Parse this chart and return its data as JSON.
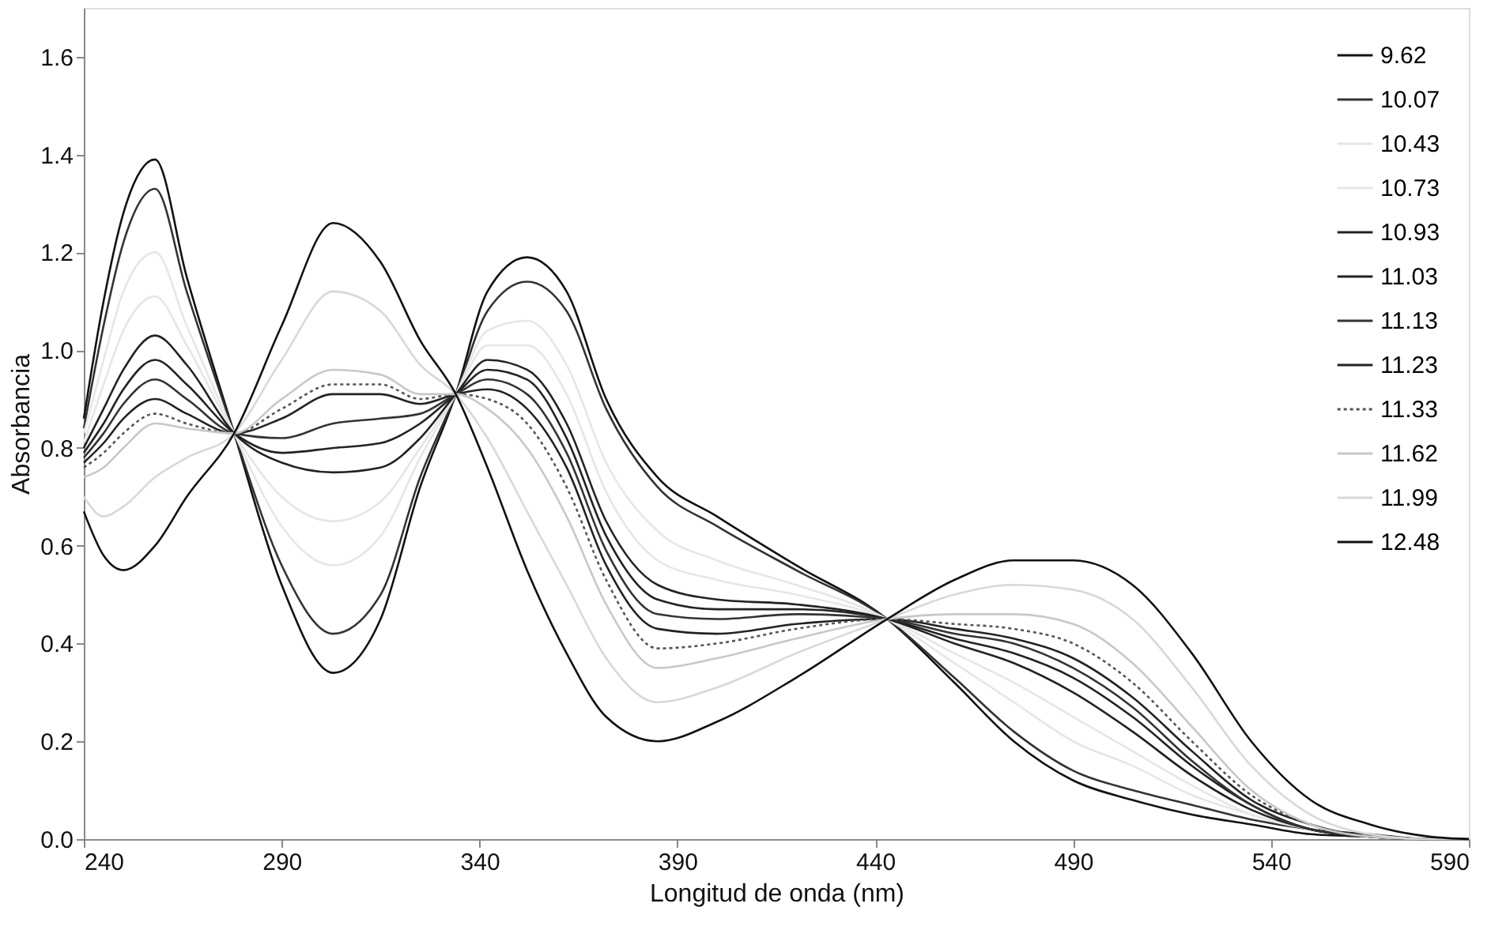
{
  "chart_data": {
    "type": "line",
    "xlabel": "Longitud de onda (nm)",
    "ylabel": "Absorbancia",
    "x": [
      240,
      245,
      250,
      258,
      266,
      278,
      290,
      303,
      315,
      325,
      334,
      342,
      352,
      362,
      372,
      385,
      400,
      420,
      443,
      460,
      475,
      490,
      505,
      520,
      535,
      550,
      565,
      580,
      590
    ],
    "series": [
      {
        "name": "9.62",
        "color": "#111111",
        "values": [
          0.86,
          1.1,
          1.28,
          1.39,
          1.15,
          0.83,
          0.52,
          0.34,
          0.45,
          0.72,
          0.91,
          1.12,
          1.19,
          1.12,
          0.9,
          0.74,
          0.66,
          0.56,
          0.45,
          0.32,
          0.2,
          0.12,
          0.08,
          0.05,
          0.03,
          0.01,
          0.005,
          0,
          0
        ]
      },
      {
        "name": "10.07",
        "color": "#333333",
        "values": [
          0.84,
          1.05,
          1.22,
          1.33,
          1.12,
          0.83,
          0.56,
          0.42,
          0.5,
          0.74,
          0.91,
          1.08,
          1.14,
          1.08,
          0.88,
          0.72,
          0.64,
          0.55,
          0.45,
          0.33,
          0.22,
          0.14,
          0.1,
          0.07,
          0.04,
          0.02,
          0.01,
          0,
          0
        ]
      },
      {
        "name": "10.43",
        "color": "#e6e6e6",
        "values": [
          0.83,
          0.98,
          1.12,
          1.2,
          1.05,
          0.83,
          0.64,
          0.56,
          0.62,
          0.78,
          0.91,
          1.04,
          1.06,
          0.97,
          0.77,
          0.63,
          0.57,
          0.52,
          0.45,
          0.36,
          0.28,
          0.2,
          0.15,
          0.09,
          0.05,
          0.02,
          0.005,
          0,
          0
        ]
      },
      {
        "name": "10.73",
        "color": "#e6e6e6",
        "values": [
          0.81,
          0.93,
          1.04,
          1.11,
          1.01,
          0.83,
          0.7,
          0.65,
          0.69,
          0.8,
          0.91,
          1.01,
          1.01,
          0.91,
          0.71,
          0.57,
          0.53,
          0.5,
          0.45,
          0.38,
          0.32,
          0.25,
          0.18,
          0.11,
          0.05,
          0.02,
          0.005,
          0,
          0
        ]
      },
      {
        "name": "10.93",
        "color": "#222222",
        "values": [
          0.8,
          0.88,
          0.96,
          1.03,
          0.97,
          0.83,
          0.77,
          0.75,
          0.76,
          0.82,
          0.91,
          0.98,
          0.96,
          0.85,
          0.65,
          0.52,
          0.49,
          0.48,
          0.45,
          0.4,
          0.36,
          0.3,
          0.22,
          0.13,
          0.06,
          0.02,
          0.005,
          0,
          0
        ]
      },
      {
        "name": "11.03",
        "color": "#222222",
        "values": [
          0.79,
          0.85,
          0.92,
          0.98,
          0.93,
          0.83,
          0.79,
          0.8,
          0.81,
          0.85,
          0.91,
          0.96,
          0.94,
          0.82,
          0.62,
          0.49,
          0.47,
          0.47,
          0.45,
          0.41,
          0.38,
          0.33,
          0.25,
          0.15,
          0.07,
          0.02,
          0.005,
          0,
          0
        ]
      },
      {
        "name": "11.13",
        "color": "#333333",
        "values": [
          0.78,
          0.83,
          0.89,
          0.94,
          0.9,
          0.83,
          0.82,
          0.85,
          0.86,
          0.87,
          0.91,
          0.94,
          0.91,
          0.79,
          0.59,
          0.46,
          0.45,
          0.46,
          0.45,
          0.42,
          0.4,
          0.35,
          0.27,
          0.16,
          0.07,
          0.02,
          0.005,
          0,
          0
        ]
      },
      {
        "name": "11.23",
        "color": "#222222",
        "values": [
          0.77,
          0.81,
          0.86,
          0.9,
          0.87,
          0.83,
          0.86,
          0.91,
          0.91,
          0.89,
          0.91,
          0.92,
          0.88,
          0.76,
          0.56,
          0.43,
          0.42,
          0.44,
          0.45,
          0.43,
          0.41,
          0.37,
          0.29,
          0.18,
          0.08,
          0.03,
          0.005,
          0,
          0
        ]
      },
      {
        "name": "11.33",
        "color": "#555555",
        "line_style": "dotted",
        "values": [
          0.76,
          0.79,
          0.83,
          0.87,
          0.85,
          0.83,
          0.88,
          0.93,
          0.93,
          0.9,
          0.91,
          0.9,
          0.85,
          0.72,
          0.53,
          0.39,
          0.4,
          0.43,
          0.45,
          0.44,
          0.43,
          0.4,
          0.32,
          0.2,
          0.09,
          0.03,
          0.005,
          0,
          0
        ]
      },
      {
        "name": "11.62",
        "color": "#c8c8c8",
        "values": [
          0.74,
          0.76,
          0.8,
          0.85,
          0.84,
          0.83,
          0.9,
          0.96,
          0.95,
          0.91,
          0.91,
          0.88,
          0.8,
          0.66,
          0.48,
          0.35,
          0.37,
          0.41,
          0.45,
          0.46,
          0.46,
          0.44,
          0.36,
          0.23,
          0.1,
          0.03,
          0.005,
          0,
          0
        ]
      },
      {
        "name": "11.99",
        "color": "#d8d8d8",
        "values": [
          0.7,
          0.66,
          0.68,
          0.74,
          0.78,
          0.83,
          0.98,
          1.12,
          1.08,
          0.97,
          0.91,
          0.82,
          0.67,
          0.52,
          0.37,
          0.28,
          0.31,
          0.38,
          0.45,
          0.5,
          0.52,
          0.51,
          0.45,
          0.31,
          0.15,
          0.05,
          0.01,
          0,
          0
        ]
      },
      {
        "name": "12.48",
        "color": "#111111",
        "values": [
          0.67,
          0.58,
          0.55,
          0.6,
          0.7,
          0.83,
          1.05,
          1.26,
          1.18,
          1.02,
          0.91,
          0.76,
          0.55,
          0.38,
          0.25,
          0.2,
          0.24,
          0.33,
          0.45,
          0.53,
          0.57,
          0.57,
          0.52,
          0.38,
          0.2,
          0.08,
          0.03,
          0.005,
          0
        ]
      }
    ],
    "xlim": [
      240,
      590
    ],
    "xticks": [
      240,
      290,
      340,
      390,
      440,
      490,
      540,
      590
    ],
    "ylim": [
      0,
      1.7
    ],
    "yticks": [
      {
        "value": 0,
        "label": "0.0"
      },
      {
        "value": 0.2,
        "label": "0.2"
      },
      {
        "value": 0.4,
        "label": "0.4"
      },
      {
        "value": 0.6,
        "label": "0.6"
      },
      {
        "value": 0.8,
        "label": "0.8"
      },
      {
        "value": 1.0,
        "label": "1.0"
      },
      {
        "value": 1.2,
        "label": "1.2"
      },
      {
        "value": 1.4,
        "label": "1.4"
      },
      {
        "value": 1.6,
        "label": "1.6"
      }
    ],
    "line_style": "solid",
    "marker": "none",
    "grid": false,
    "legend": "top right"
  }
}
